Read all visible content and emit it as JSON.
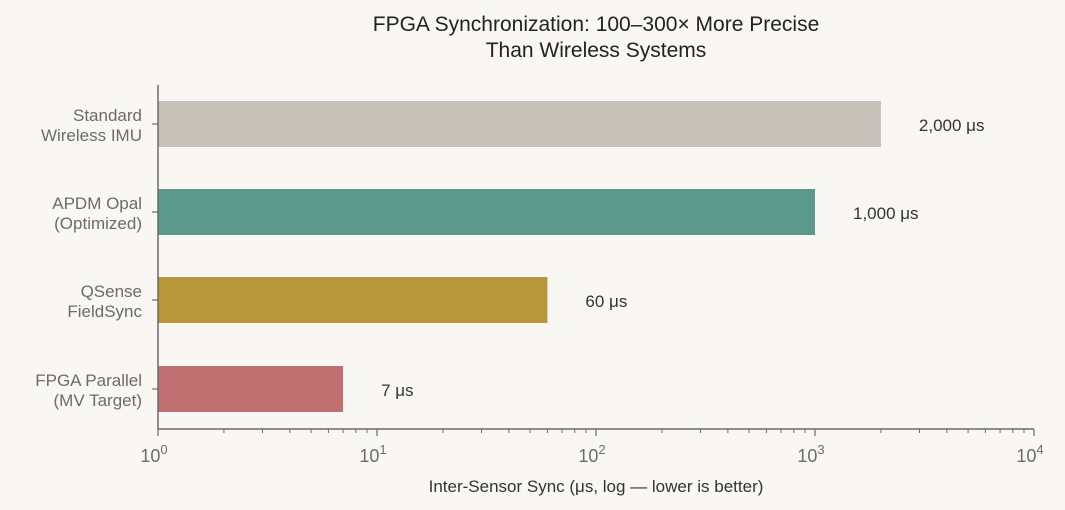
{
  "chart_data": {
    "type": "bar",
    "orientation": "horizontal",
    "title_lines": [
      "FPGA Synchronization: 100–300× More Precise",
      "Than Wireless Systems"
    ],
    "xlabel": "Inter-Sensor Sync (μs, log — lower is better)",
    "xscale": "log",
    "xlim": [
      1,
      10000
    ],
    "xticks": [
      {
        "base": "10",
        "exp": "0"
      },
      {
        "base": "10",
        "exp": "1"
      },
      {
        "base": "10",
        "exp": "2"
      },
      {
        "base": "10",
        "exp": "3"
      },
      {
        "base": "10",
        "exp": "4"
      }
    ],
    "categories": [
      [
        "Standard",
        "Wireless IMU"
      ],
      [
        "APDM Opal",
        "(Optimized)"
      ],
      [
        "QSense",
        "FieldSync"
      ],
      [
        "FPGA Parallel",
        "(MV Target)"
      ]
    ],
    "values": [
      2000,
      1000,
      60,
      7
    ],
    "value_labels": [
      "2,000 μs",
      "1,000 μs",
      "60 μs",
      "7 μs"
    ],
    "colors": [
      "#c5c0b8",
      "#5b9a8a",
      "#b8963a",
      "#c07070"
    ],
    "grid": false
  }
}
